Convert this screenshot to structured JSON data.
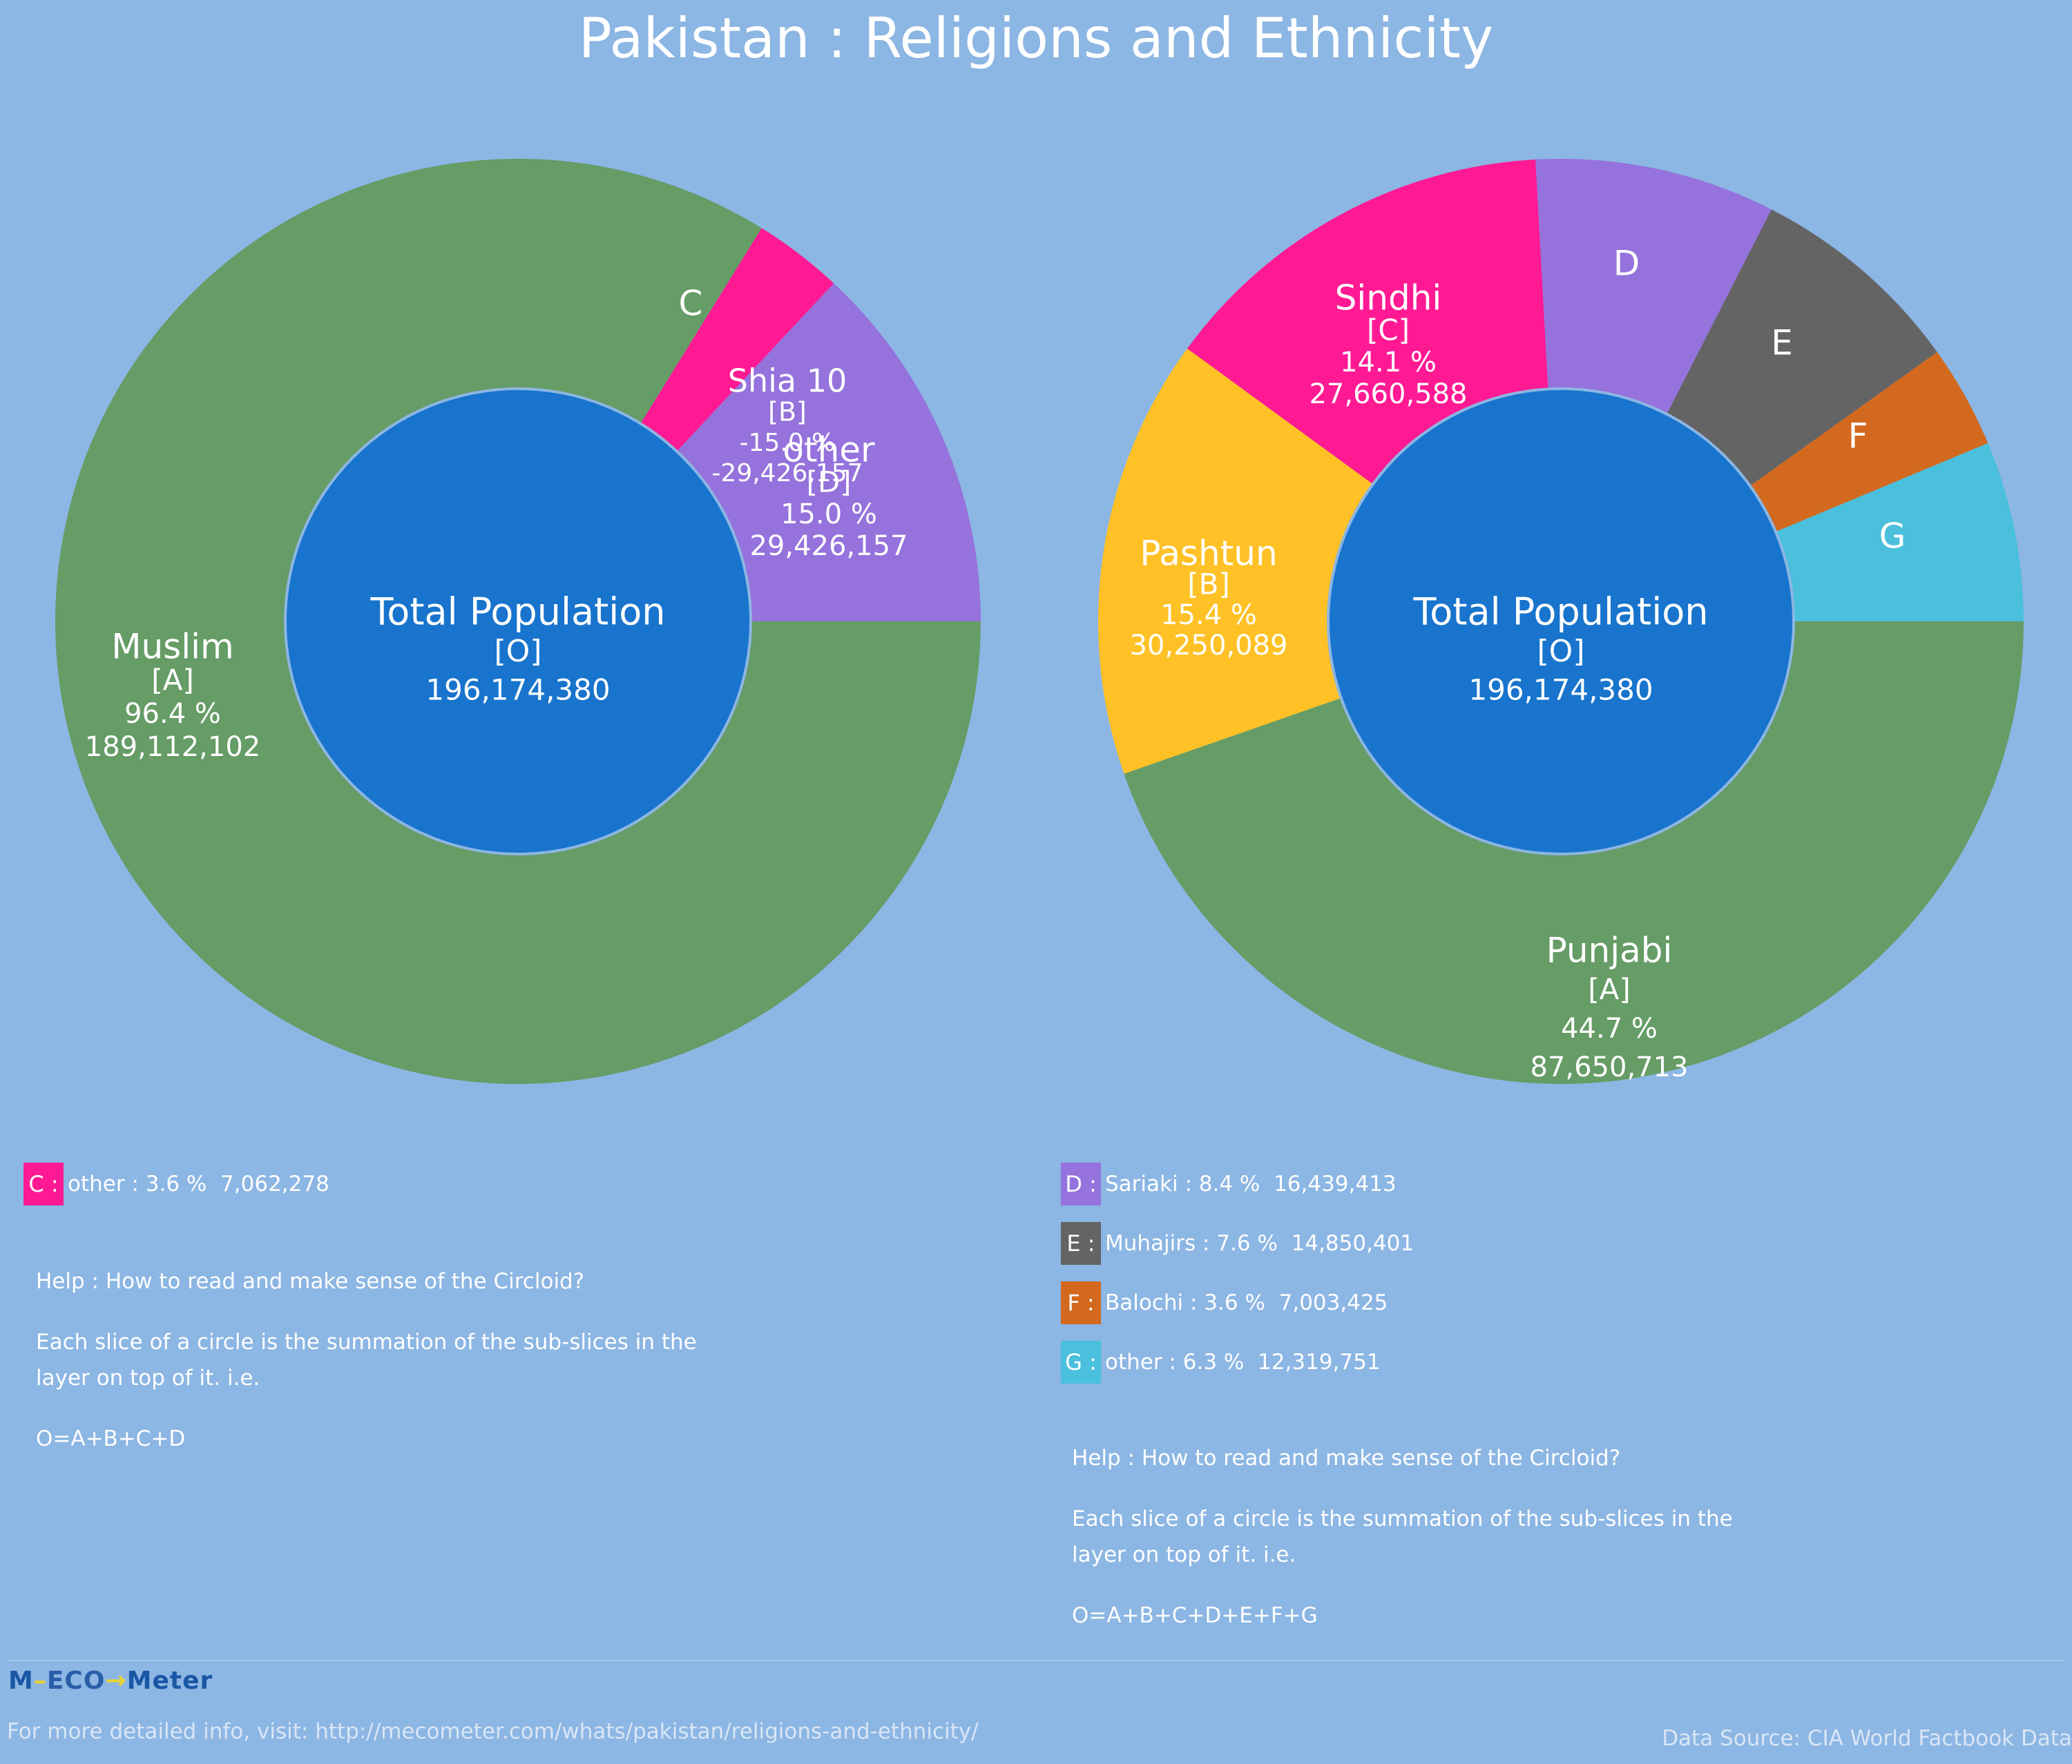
{
  "title": "Pakistan : Religions and Ethnicity",
  "chart_data": [
    {
      "type": "pie",
      "center": {
        "label": "Total Population",
        "code": "[O]",
        "value": "196,174,380"
      },
      "slices": [
        {
          "key": "A",
          "name": "Muslim",
          "percent": 96.4,
          "percent_label": "96.4 %",
          "value_label": "189,112,102",
          "color": "#669c66",
          "labeled": true,
          "label_lines": [
            "Muslim",
            "[A]",
            "96.4 %",
            "189,112,102"
          ]
        },
        {
          "key": "C",
          "name": "other",
          "percent": 3.6,
          "percent_label": "3.6 %",
          "value_label": "7,062,278",
          "color": "#ff1a94",
          "labeled": false,
          "label_lines": [
            "C"
          ]
        },
        {
          "key": "D",
          "name": "other",
          "percent": 15.0,
          "percent_label": "15.0 %",
          "value_label": "29,426,157",
          "color": "#9572dc",
          "labeled": true,
          "label_lines": [
            "other",
            "[D]",
            "15.0 %",
            "29,426,157"
          ]
        }
      ],
      "overlay_label": {
        "key": "B",
        "name": "Shia 10",
        "percent_label": "-15.0 %",
        "value_label": "-29,426,157",
        "label_lines": [
          "Shia 10",
          "[B]",
          "-15.0 %",
          "-29,426,157"
        ]
      },
      "legend": [
        {
          "key": "C",
          "text": "other : 3.6 %  7,062,278",
          "color": "#ff1a94"
        }
      ],
      "help": {
        "heading": "Help : How to read and make sense of the Circloid?",
        "body": "Each slice of a circle is the summation of the sub-slices in the layer on top of it. i.e.",
        "formula": "O=A+B+C+D"
      }
    },
    {
      "type": "pie",
      "center": {
        "label": "Total Population",
        "code": "[O]",
        "value": "196,174,380"
      },
      "slices": [
        {
          "key": "A",
          "name": "Punjabi",
          "percent": 44.7,
          "percent_label": "44.7 %",
          "value_label": "87,650,713",
          "color": "#669c66",
          "labeled": true,
          "label_lines": [
            "Punjabi",
            "[A]",
            "44.7 %",
            "87,650,713"
          ]
        },
        {
          "key": "B",
          "name": "Pashtun",
          "percent": 15.4,
          "percent_label": "15.4 %",
          "value_label": "30,250,089",
          "color": "#ffc125",
          "labeled": true,
          "label_lines": [
            "Pashtun",
            "[B]",
            "15.4 %",
            "30,250,089"
          ]
        },
        {
          "key": "C",
          "name": "Sindhi",
          "percent": 14.1,
          "percent_label": "14.1 %",
          "value_label": "27,660,588",
          "color": "#ff1a94",
          "labeled": true,
          "label_lines": [
            "Sindhi",
            "[C]",
            "14.1 %",
            "27,660,588"
          ]
        },
        {
          "key": "D",
          "name": "Sariaki",
          "percent": 8.4,
          "percent_label": "8.4 %",
          "value_label": "16,439,413",
          "color": "#9572dc",
          "labeled": false,
          "label_lines": [
            "D"
          ]
        },
        {
          "key": "E",
          "name": "Muhajirs",
          "percent": 7.6,
          "percent_label": "7.6 %",
          "value_label": "14,850,401",
          "color": "#646464",
          "labeled": false,
          "label_lines": [
            "E"
          ]
        },
        {
          "key": "F",
          "name": "Balochi",
          "percent": 3.6,
          "percent_label": "3.6 %",
          "value_label": "7,003,425",
          "color": "#d2691e",
          "labeled": false,
          "label_lines": [
            "F"
          ]
        },
        {
          "key": "G",
          "name": "other",
          "percent": 6.3,
          "percent_label": "6.3 %",
          "value_label": "12,319,751",
          "color": "#4ac0dc",
          "labeled": false,
          "label_lines": [
            "G"
          ]
        }
      ],
      "legend": [
        {
          "key": "D",
          "text": "Sariaki : 8.4 %  16,439,413",
          "color": "#9572dc"
        },
        {
          "key": "E",
          "text": "Muhajirs : 7.6 %  14,850,401",
          "color": "#646464"
        },
        {
          "key": "F",
          "text": "Balochi : 3.6 %  7,003,425",
          "color": "#d2691e"
        },
        {
          "key": "G",
          "text": "other : 6.3 %  12,319,751",
          "color": "#4ac0dc"
        }
      ],
      "help": {
        "heading": "Help : How to read and make sense of the Circloid?",
        "body": "Each slice of a circle is the summation of the sub-slices in the layer on top of it. i.e.",
        "formula": "O=A+B+C+D+E+F+G"
      }
    }
  ],
  "colors": {
    "background": "#8cb6e3",
    "center": "#1874cd",
    "center_ring": "#8cb6e3"
  },
  "footer": {
    "logo_left": "M",
    "logo_mid": "ECO",
    "logo_right": "Meter",
    "info": "For more detailed info, visit: http://mecometer.com/whats/pakistan/religions-and-ethnicity/",
    "source": "Data Source: CIA World Factbook Data"
  }
}
